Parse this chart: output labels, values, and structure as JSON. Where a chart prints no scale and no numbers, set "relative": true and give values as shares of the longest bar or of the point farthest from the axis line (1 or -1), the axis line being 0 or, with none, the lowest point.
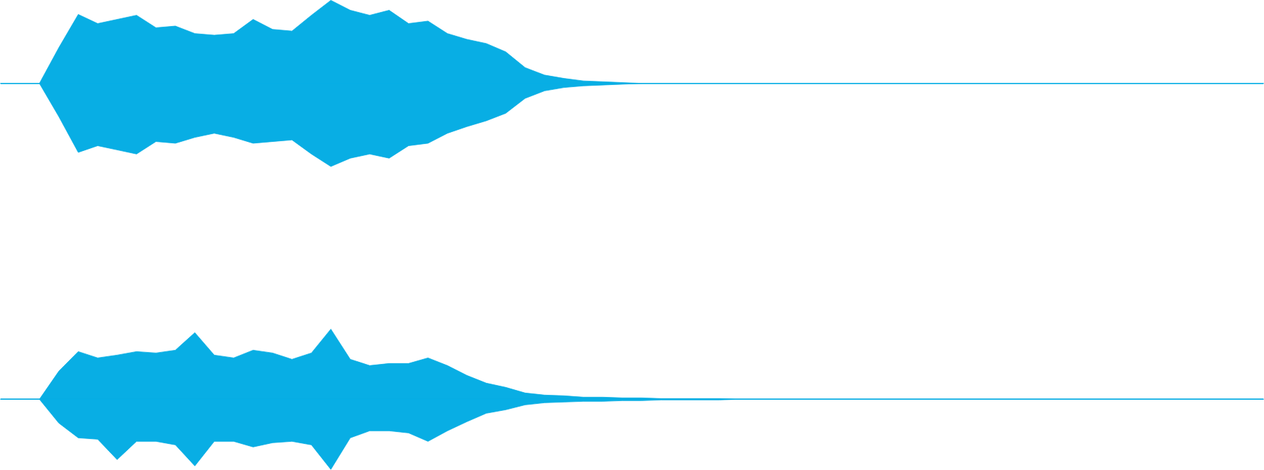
{
  "chart_data": [
    {
      "type": "area",
      "relative": true,
      "categories": [
        null,
        null,
        null,
        null,
        null,
        null,
        null,
        null,
        null,
        null,
        null,
        null,
        null,
        null,
        null,
        null,
        null,
        null,
        null,
        null,
        null,
        null,
        null,
        null,
        null,
        null,
        null,
        null,
        null,
        null,
        null,
        null,
        null,
        null,
        null,
        null,
        null,
        null,
        null,
        null,
        null,
        null,
        null,
        null,
        null,
        null,
        null,
        null,
        null,
        null,
        null,
        null,
        null,
        null,
        null,
        null,
        null,
        null,
        null,
        null,
        null,
        null,
        null,
        null,
        null,
        null
      ],
      "series": [
        {
          "color": "#08aee4",
          "values": [
            0,
            0,
            0,
            0.43,
            0.83,
            0.72,
            0.77,
            0.82,
            0.67,
            0.69,
            0.6,
            0.58,
            0.6,
            0.77,
            0.65,
            0.63,
            0.82,
            1,
            0.88,
            0.82,
            0.88,
            0.72,
            0.75,
            0.6,
            0.53,
            0.48,
            0.38,
            0.19,
            0.1,
            0.06,
            0.03,
            0.02,
            0.01,
            0,
            0,
            0,
            0,
            0,
            0,
            0,
            0,
            0,
            0,
            0,
            0,
            0,
            0,
            0,
            0,
            0,
            0,
            0,
            0,
            0,
            0,
            0,
            0,
            0,
            0,
            0,
            0,
            0,
            0,
            0,
            0,
            0
          ]
        },
        {
          "color": "#08aee4",
          "values": [
            0,
            0,
            0,
            -0.4,
            -0.83,
            -0.75,
            -0.8,
            -0.85,
            -0.7,
            -0.72,
            -0.65,
            -0.6,
            -0.65,
            -0.72,
            -0.7,
            -0.68,
            -0.85,
            -1,
            -0.9,
            -0.85,
            -0.9,
            -0.75,
            -0.72,
            -0.6,
            -0.52,
            -0.45,
            -0.36,
            -0.18,
            -0.09,
            -0.05,
            -0.03,
            -0.02,
            -0.01,
            0,
            0,
            0,
            0,
            0,
            0,
            0,
            0,
            0,
            0,
            0,
            0,
            0,
            0,
            0,
            0,
            0,
            0,
            0,
            0,
            0,
            0,
            0,
            0,
            0,
            0,
            0,
            0,
            0,
            0,
            0,
            0,
            0
          ]
        }
      ]
    },
    {
      "type": "area",
      "relative": true,
      "categories": [
        null,
        null,
        null,
        null,
        null,
        null,
        null,
        null,
        null,
        null,
        null,
        null,
        null,
        null,
        null,
        null,
        null,
        null,
        null,
        null,
        null,
        null,
        null,
        null,
        null,
        null,
        null,
        null,
        null,
        null,
        null,
        null,
        null,
        null,
        null,
        null,
        null,
        null,
        null,
        null,
        null,
        null,
        null,
        null,
        null,
        null,
        null,
        null,
        null,
        null,
        null,
        null,
        null,
        null,
        null,
        null,
        null,
        null,
        null,
        null,
        null,
        null,
        null,
        null,
        null,
        null
      ],
      "series": [
        {
          "color": "#08aee4",
          "values": [
            0,
            0,
            0,
            0.4,
            0.68,
            0.59,
            0.63,
            0.68,
            0.66,
            0.7,
            0.95,
            0.63,
            0.59,
            0.7,
            0.66,
            0.57,
            0.66,
            1,
            0.57,
            0.48,
            0.51,
            0.51,
            0.59,
            0.48,
            0.34,
            0.23,
            0.17,
            0.09,
            0.06,
            0.05,
            0.03,
            0.03,
            0.02,
            0.02,
            0.01,
            0.01,
            0.01,
            0.01,
            0,
            0,
            0,
            0,
            0,
            0,
            0,
            0,
            0,
            0,
            0,
            0,
            0,
            0,
            0,
            0,
            0,
            0,
            0,
            0,
            0,
            0,
            0,
            0,
            0,
            0,
            0,
            0
          ]
        },
        {
          "color": "#08aee4",
          "values": [
            0,
            0,
            0,
            -0.34,
            -0.55,
            -0.57,
            -0.86,
            -0.6,
            -0.6,
            -0.65,
            -0.95,
            -0.6,
            -0.6,
            -0.68,
            -0.62,
            -0.6,
            -0.65,
            -1,
            -0.55,
            -0.45,
            -0.45,
            -0.48,
            -0.6,
            -0.45,
            -0.32,
            -0.2,
            -0.15,
            -0.08,
            -0.05,
            -0.04,
            -0.03,
            -0.03,
            -0.02,
            -0.02,
            -0.01,
            -0.01,
            -0.01,
            -0.01,
            0,
            0,
            0,
            0,
            0,
            0,
            0,
            0,
            0,
            0,
            0,
            0,
            0,
            0,
            0,
            0,
            0,
            0,
            0,
            0,
            0,
            0,
            0,
            0,
            0,
            0,
            0,
            0
          ]
        }
      ]
    }
  ]
}
